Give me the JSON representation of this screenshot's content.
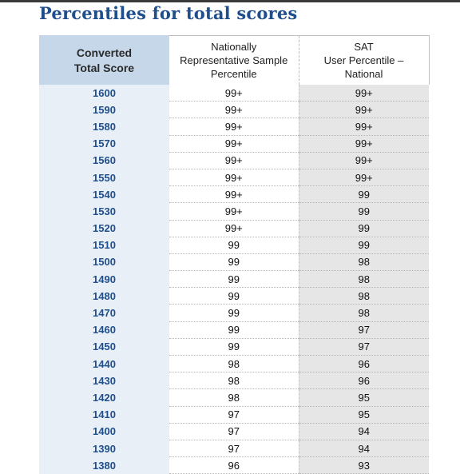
{
  "title": "Percentiles for total scores",
  "headers": {
    "score": [
      "Converted",
      "Total Score"
    ],
    "nrs": [
      "Nationally",
      "Representative Sample",
      "Percentile"
    ],
    "sat": [
      "SAT",
      "User Percentile –",
      "National"
    ]
  },
  "rows": [
    {
      "score": "1600",
      "nrs": "99+",
      "sat": "99+"
    },
    {
      "score": "1590",
      "nrs": "99+",
      "sat": "99+"
    },
    {
      "score": "1580",
      "nrs": "99+",
      "sat": "99+"
    },
    {
      "score": "1570",
      "nrs": "99+",
      "sat": "99+"
    },
    {
      "score": "1560",
      "nrs": "99+",
      "sat": "99+"
    },
    {
      "score": "1550",
      "nrs": "99+",
      "sat": "99+"
    },
    {
      "score": "1540",
      "nrs": "99+",
      "sat": "99"
    },
    {
      "score": "1530",
      "nrs": "99+",
      "sat": "99"
    },
    {
      "score": "1520",
      "nrs": "99+",
      "sat": "99"
    },
    {
      "score": "1510",
      "nrs": "99",
      "sat": "99"
    },
    {
      "score": "1500",
      "nrs": "99",
      "sat": "98"
    },
    {
      "score": "1490",
      "nrs": "99",
      "sat": "98"
    },
    {
      "score": "1480",
      "nrs": "99",
      "sat": "98"
    },
    {
      "score": "1470",
      "nrs": "99",
      "sat": "98"
    },
    {
      "score": "1460",
      "nrs": "99",
      "sat": "97"
    },
    {
      "score": "1450",
      "nrs": "99",
      "sat": "97"
    },
    {
      "score": "1440",
      "nrs": "98",
      "sat": "96"
    },
    {
      "score": "1430",
      "nrs": "98",
      "sat": "96"
    },
    {
      "score": "1420",
      "nrs": "98",
      "sat": "95"
    },
    {
      "score": "1410",
      "nrs": "97",
      "sat": "95"
    },
    {
      "score": "1400",
      "nrs": "97",
      "sat": "94"
    },
    {
      "score": "1390",
      "nrs": "97",
      "sat": "94"
    },
    {
      "score": "1380",
      "nrs": "96",
      "sat": "93"
    }
  ],
  "colors": {
    "title": "#1f4e8c",
    "score_column_bg": "#e8eff7",
    "header_score_bg": "#c6d7ea",
    "sat_column_bg": "#e6e6e6"
  }
}
